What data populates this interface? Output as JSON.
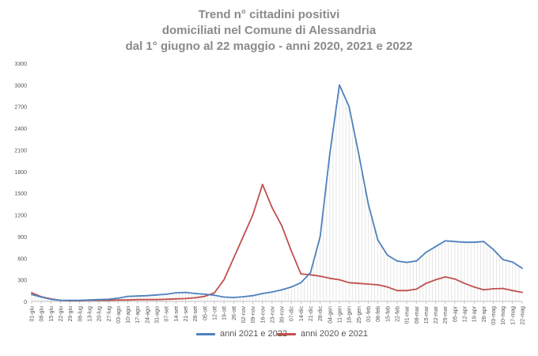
{
  "title_lines": [
    "Trend n° cittadini positivi",
    "domiciliati nel Comune di Alessandria",
    "dal 1° giugno al 22 maggio - anni 2020, 2021 e 2022"
  ],
  "colors": {
    "blue": "#4f81bd",
    "red": "#c0504d",
    "grid": "#d9d9d9",
    "title": "#8a8a8a"
  },
  "chart_data": {
    "type": "line",
    "title": "Trend n° cittadini positivi domiciliati nel Comune di Alessandria dal 1° giugno al 22 maggio - anni 2020, 2021 e 2022",
    "xlabel": "",
    "ylabel": "",
    "ylim": [
      0,
      3300
    ],
    "yticks": [
      0,
      300,
      600,
      900,
      1200,
      1500,
      1800,
      2100,
      2400,
      2700,
      3000,
      3300
    ],
    "grid": false,
    "legend_position": "bottom",
    "categories": [
      "01-giu",
      "08-giu",
      "15-giu",
      "22-giu",
      "29-giu",
      "06-lug",
      "13-lug",
      "20-lug",
      "27-lug",
      "03-ago",
      "10-ago",
      "17-ago",
      "24-ago",
      "31-ago",
      "07-set",
      "14-set",
      "21-set",
      "28-set",
      "05-ott",
      "12-ott",
      "19-ott",
      "26-ott",
      "02-nov",
      "09-nov",
      "16-nov",
      "23-nov",
      "30-nov",
      "07-dic",
      "14-dic",
      "21-dic",
      "28-dic",
      "04-gen",
      "11-gen",
      "18-gen",
      "25-gen",
      "01-feb",
      "08-feb",
      "15-feb",
      "22-feb",
      "01-mar",
      "08-mar",
      "15-mar",
      "22-mar",
      "29-mar",
      "05-apr",
      "12-apr",
      "19-apr",
      "26-apr",
      "03-mag",
      "10-mag",
      "17-mag",
      "22-mag"
    ],
    "series": [
      {
        "name": "anni 2021 e 2022",
        "color": "#4f81bd",
        "values": [
          95,
          60,
          30,
          15,
          15,
          15,
          20,
          25,
          30,
          45,
          70,
          75,
          80,
          90,
          100,
          120,
          125,
          110,
          100,
          85,
          60,
          55,
          65,
          80,
          110,
          130,
          160,
          200,
          260,
          400,
          900,
          2050,
          3000,
          2700,
          2050,
          1350,
          850,
          640,
          560,
          540,
          560,
          680,
          760,
          840,
          830,
          820,
          820,
          830,
          720,
          580,
          545,
          460
        ]
      },
      {
        "name": "anni 2020 e 2021",
        "color": "#c0504d",
        "values": [
          120,
          65,
          35,
          15,
          10,
          10,
          15,
          15,
          15,
          20,
          20,
          25,
          25,
          25,
          30,
          35,
          40,
          50,
          70,
          120,
          300,
          600,
          900,
          1200,
          1620,
          1300,
          1050,
          700,
          380,
          370,
          350,
          320,
          300,
          260,
          250,
          240,
          230,
          200,
          150,
          150,
          170,
          250,
          300,
          340,
          310,
          250,
          200,
          160,
          175,
          180,
          150,
          125
        ]
      }
    ]
  }
}
